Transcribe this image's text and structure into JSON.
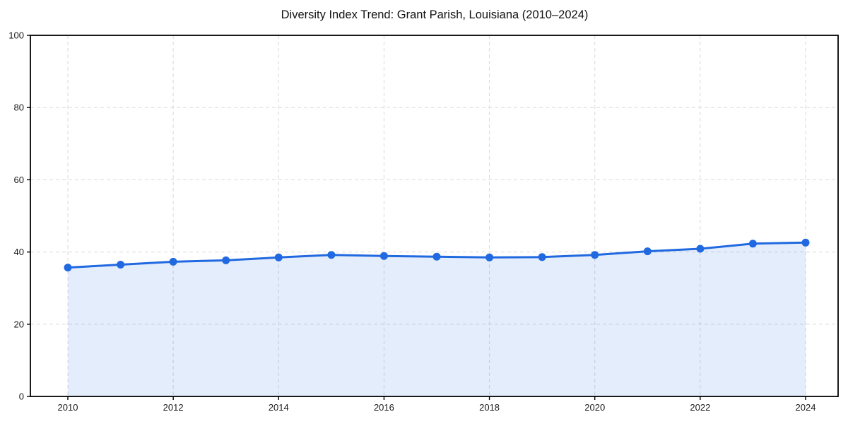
{
  "chart_data": {
    "type": "line",
    "title": "Diversity Index Trend: Grant Parish, Louisiana (2010–2024)",
    "x": [
      2010,
      2011,
      2012,
      2013,
      2014,
      2015,
      2016,
      2017,
      2018,
      2019,
      2020,
      2021,
      2022,
      2023,
      2024
    ],
    "values": [
      35.7,
      36.5,
      37.3,
      37.7,
      38.5,
      39.2,
      38.9,
      38.7,
      38.5,
      38.6,
      39.2,
      40.2,
      40.9,
      42.3,
      42.6
    ],
    "series_name": "Diversity Index",
    "xlabel": "",
    "ylabel": "",
    "xlim": [
      2009.3,
      2024.62
    ],
    "ylim": [
      0,
      100
    ],
    "xticks": [
      2010,
      2012,
      2014,
      2016,
      2018,
      2020,
      2022,
      2024
    ],
    "yticks": [
      0,
      20,
      40,
      60,
      80,
      100
    ],
    "grid": "dashed-both-axes",
    "legend": "none",
    "marker": "circle",
    "colors": {
      "line": "#2069e0",
      "marker": "#2069e0",
      "area_fill": "rgba(32, 105, 224, 0.12)",
      "gridline": "#d9d9d9",
      "spine": "#000000",
      "tick_label": "#1a1a1a",
      "title": "#111111"
    }
  }
}
